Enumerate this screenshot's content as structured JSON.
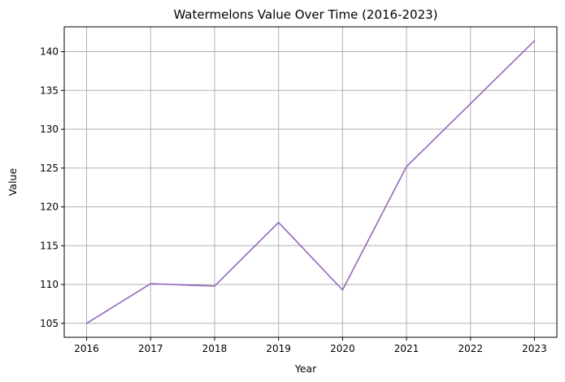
{
  "chart_data": {
    "type": "line",
    "title": "Watermelons Value Over Time (2016-2023)",
    "xlabel": "Year",
    "ylabel": "Value",
    "x": [
      2016,
      2017,
      2018,
      2019,
      2020,
      2021,
      2022,
      2023
    ],
    "series": [
      {
        "values": [
          105.0,
          110.1,
          109.8,
          118.0,
          109.3,
          125.2,
          133.3,
          141.4
        ],
        "color": "#9467bd"
      }
    ],
    "xticks": [
      "2016",
      "2017",
      "2018",
      "2019",
      "2020",
      "2021",
      "2022",
      "2023"
    ],
    "yticks": [
      "105",
      "110",
      "115",
      "120",
      "125",
      "130",
      "135",
      "140"
    ],
    "xlim": [
      2015.65,
      2023.35
    ],
    "ylim": [
      103.2,
      143.2
    ],
    "grid": true
  }
}
